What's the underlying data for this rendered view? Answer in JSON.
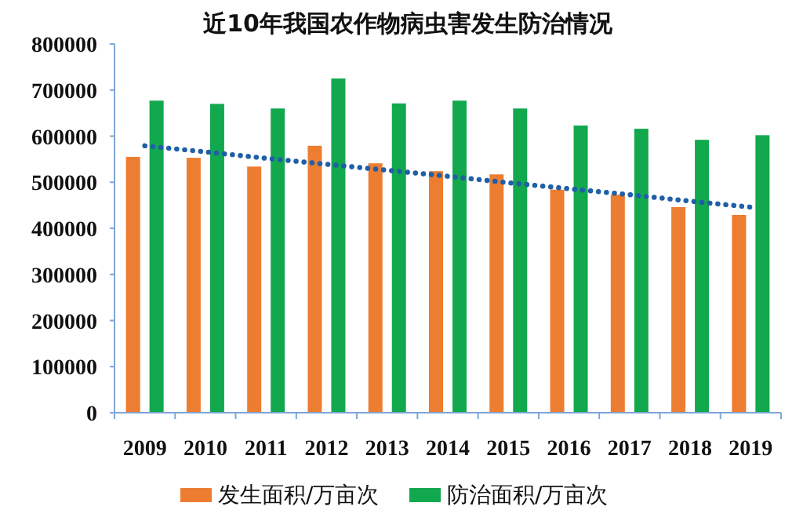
{
  "chart_data": {
    "type": "bar",
    "title": "近10年我国农作物病虫害发生防治情况",
    "categories": [
      "2009",
      "2010",
      "2011",
      "2012",
      "2013",
      "2014",
      "2015",
      "2016",
      "2017",
      "2018",
      "2019"
    ],
    "series": [
      {
        "name": "发生面积/万亩次",
        "color": "#ed7d31",
        "values": [
          555000,
          553000,
          534000,
          579000,
          541000,
          524000,
          517000,
          484000,
          473000,
          446000,
          429000
        ]
      },
      {
        "name": "防治面积/万亩次",
        "color": "#12a84e",
        "values": [
          677000,
          670000,
          660000,
          725000,
          671000,
          677000,
          660000,
          623000,
          616000,
          592000,
          602000
        ]
      },
      {
        "type": "line",
        "color": "#1f5fa8",
        "line_style": "dotted",
        "values": [
          579000,
          566000,
          552000,
          539000,
          526000,
          513000,
          499000,
          486000,
          473000,
          459000,
          446000
        ]
      }
    ],
    "ylim": [
      0,
      800000
    ],
    "yticks": [
      0,
      100000,
      200000,
      300000,
      400000,
      500000,
      600000,
      700000,
      800000
    ],
    "grid": false,
    "legend": "bottom"
  }
}
